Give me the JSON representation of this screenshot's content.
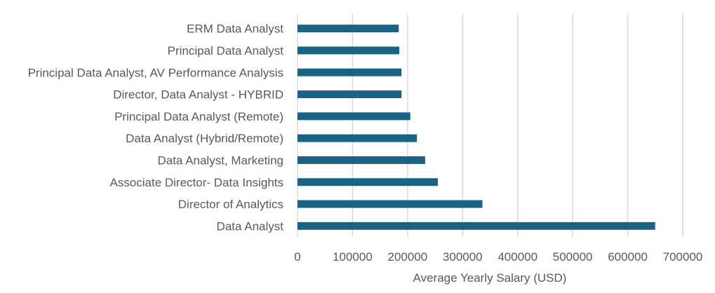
{
  "chart_data": {
    "type": "bar",
    "orientation": "horizontal",
    "categories": [
      "ERM Data Analyst",
      "Principal Data Analyst",
      "Principal Data Analyst, AV Performance Analysis",
      "Director, Data Analyst - HYBRID",
      "Principal Data Analyst (Remote)",
      "Data Analyst (Hybrid/Remote)",
      "Data Analyst, Marketing",
      "Associate Director- Data Insights",
      "Director of Analytics",
      "Data Analyst"
    ],
    "values": [
      184000,
      185000,
      189000,
      189000,
      205000,
      217000,
      232000,
      255000,
      336000,
      650000
    ],
    "xlabel": "Average Yearly Salary (USD)",
    "ylabel": "",
    "xlim": [
      0,
      700000
    ],
    "xticks": [
      "0",
      "100000",
      "200000",
      "300000",
      "400000",
      "500000",
      "600000",
      "700000"
    ],
    "gridlines": "vertical",
    "legend": "none",
    "bar_color": "#1b6384",
    "grid_color": "#d9d9d9",
    "text_color": "#595959"
  }
}
